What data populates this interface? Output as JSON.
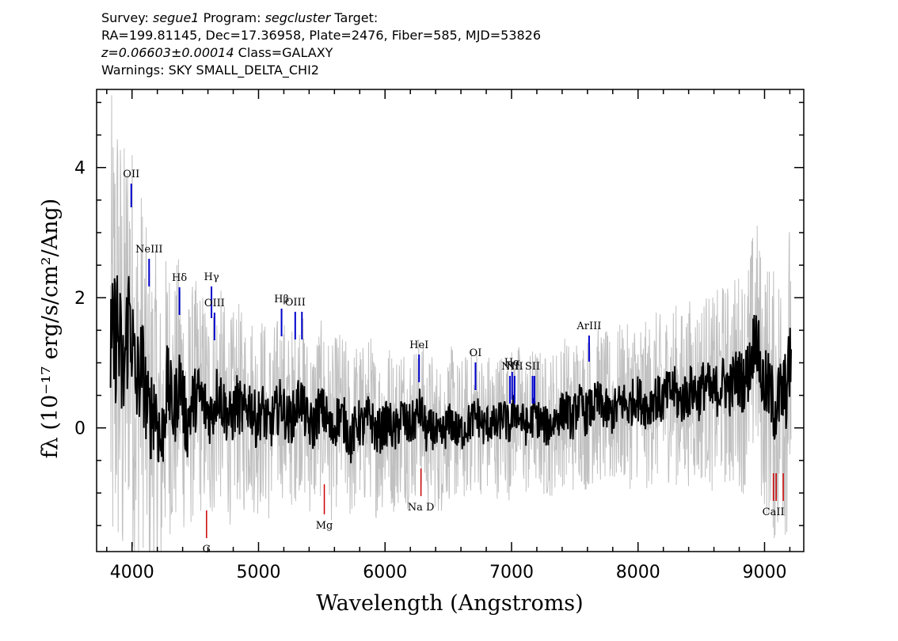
{
  "header": {
    "survey_label": "Survey:",
    "survey_value": "segue1",
    "program_label": "Program:",
    "program_value": "segcluster",
    "target_label": "Target:",
    "line2": "RA=199.81145, Dec=17.36958, Plate=2476, Fiber=585, MJD=53826",
    "redshift": "z=0.06603±0.00014",
    "class_text": "Class=GALAXY",
    "warnings": "Warnings: SKY SMALL_DELTA_CHI2"
  },
  "chart_data": {
    "type": "line",
    "xlabel": "Wavelength (Angstroms)",
    "ylabel": "fλ (10⁻¹⁷ erg/s/cm²/Ang)",
    "xlim": [
      3720,
      9310
    ],
    "ylim": [
      -1.9,
      5.2
    ],
    "x_ticks": [
      4000,
      5000,
      6000,
      7000,
      8000,
      9000
    ],
    "y_ticks": [
      0,
      2,
      4
    ],
    "grid": false,
    "series": [
      {
        "role": "flux",
        "color": "#000000",
        "x": [
          3830,
          3880,
          3930,
          3980,
          4030,
          4080,
          4130,
          4180,
          4230,
          4280,
          4330,
          4380,
          4430,
          4480,
          4530,
          4580,
          4630,
          4680,
          4730,
          4780,
          4830,
          4880,
          4930,
          4980,
          5030,
          5080,
          5130,
          5180,
          5230,
          5280,
          5330,
          5380,
          5430,
          5480,
          5530,
          5580,
          5630,
          5680,
          5730,
          5780,
          5830,
          5880,
          5930,
          5980,
          6030,
          6080,
          6130,
          6180,
          6230,
          6280,
          6330,
          6380,
          6430,
          6480,
          6530,
          6580,
          6630,
          6680,
          6730,
          6780,
          6830,
          6880,
          6930,
          6980,
          7030,
          7080,
          7130,
          7180,
          7230,
          7280,
          7330,
          7380,
          7430,
          7480,
          7530,
          7580,
          7630,
          7680,
          7730,
          7780,
          7830,
          7880,
          7930,
          7980,
          8030,
          8080,
          8130,
          8180,
          8230,
          8280,
          8330,
          8380,
          8430,
          8480,
          8530,
          8580,
          8630,
          8680,
          8730,
          8780,
          8830,
          8880,
          8930,
          8980,
          9030,
          9080,
          9130,
          9180,
          9210
        ],
        "values": [
          0.9,
          1.6,
          0.7,
          1.9,
          0.6,
          1.0,
          0.1,
          0.4,
          -0.3,
          0.7,
          0.2,
          0.8,
          0.0,
          0.4,
          0.5,
          0.3,
          0.2,
          0.6,
          0.3,
          0.1,
          0.4,
          0.2,
          0.4,
          0.1,
          0.3,
          0.0,
          0.2,
          0.4,
          0.1,
          0.2,
          0.5,
          0.1,
          0.0,
          0.3,
          0.2,
          -0.1,
          0.2,
          0.1,
          -0.2,
          0.1,
          0.0,
          0.2,
          -0.1,
          0.0,
          0.1,
          -0.1,
          0.2,
          0.0,
          0.1,
          0.3,
          -0.1,
          0.0,
          -0.2,
          0.0,
          0.1,
          -0.1,
          0.0,
          0.1,
          0.2,
          0.0,
          0.1,
          0.0,
          0.2,
          0.0,
          0.3,
          0.1,
          0.0,
          0.2,
          0.1,
          0.0,
          0.1,
          0.2,
          0.3,
          0.1,
          0.4,
          0.2,
          0.3,
          0.4,
          0.3,
          0.2,
          0.3,
          0.4,
          0.3,
          0.5,
          0.4,
          0.3,
          0.5,
          0.4,
          0.5,
          0.6,
          0.4,
          0.5,
          0.6,
          0.5,
          0.7,
          0.5,
          0.6,
          0.7,
          0.6,
          0.8,
          0.7,
          0.9,
          1.5,
          0.7,
          0.6,
          0.3,
          0.5,
          0.6,
          1.2
        ]
      },
      {
        "role": "error",
        "color": "#c0c0c0",
        "x": [
          3830,
          3900,
          4000,
          4100,
          4200,
          4300,
          4400,
          4500,
          4600,
          4700,
          4800,
          5000,
          5200,
          5400,
          5600,
          5800,
          6000,
          6200,
          6400,
          6600,
          6800,
          7000,
          7200,
          7400,
          7600,
          7800,
          8000,
          8200,
          8400,
          8600,
          8800,
          8900,
          9000,
          9100,
          9200
        ],
        "values": [
          2.6,
          2.4,
          2.0,
          1.7,
          1.5,
          1.35,
          1.25,
          1.15,
          1.1,
          1.05,
          1.0,
          0.95,
          0.9,
          0.88,
          0.85,
          0.82,
          0.8,
          0.78,
          0.75,
          0.72,
          0.7,
          0.7,
          0.7,
          0.72,
          0.75,
          0.78,
          0.8,
          0.85,
          0.9,
          0.95,
          1.05,
          1.15,
          1.25,
          1.35,
          1.45
        ]
      }
    ],
    "emission_lines": [
      {
        "label": "OII",
        "x": 3994,
        "color": "#0000cc"
      },
      {
        "label": "NeIII",
        "x": 4135,
        "color": "#0000cc"
      },
      {
        "label": "Hδ",
        "x": 4375,
        "color": "#0000cc"
      },
      {
        "label": "Hγ",
        "x": 4628,
        "color": "#0000cc"
      },
      {
        "label": "OIII",
        "x": 4652,
        "color": "#0000cc"
      },
      {
        "label": "Hβ",
        "x": 5182,
        "color": "#0000cc"
      },
      {
        "label": "OIII",
        "x": 5290,
        "color": "#0000cc"
      },
      {
        "label": "",
        "x": 5343,
        "color": "#0000cc"
      },
      {
        "label": "HeI",
        "x": 6269,
        "color": "#0000cc"
      },
      {
        "label": "OI",
        "x": 6715,
        "color": "#0000cc"
      },
      {
        "label": "NII",
        "x": 6987,
        "color": "#0000cc"
      },
      {
        "label": "Hα",
        "x": 7005,
        "color": "#0000cc"
      },
      {
        "label": "NII",
        "x": 7024,
        "color": "#0000cc"
      },
      {
        "label": "SII",
        "x": 7166,
        "color": "#0000cc"
      },
      {
        "label": "",
        "x": 7181,
        "color": "#0000cc"
      },
      {
        "label": "ArIII",
        "x": 7613,
        "color": "#0000cc"
      }
    ],
    "absorption_lines": [
      {
        "label": "G",
        "x": 4589,
        "color": "#cc0000"
      },
      {
        "label": "Mg",
        "x": 5520,
        "color": "#cc0000"
      },
      {
        "label": "Na D",
        "x": 6284,
        "color": "#cc0000"
      },
      {
        "label": "CaII",
        "x": 9070,
        "color": "#cc0000"
      },
      {
        "label": "",
        "x": 9092,
        "color": "#cc0000"
      },
      {
        "label": "",
        "x": 9148,
        "color": "#cc0000"
      }
    ]
  }
}
